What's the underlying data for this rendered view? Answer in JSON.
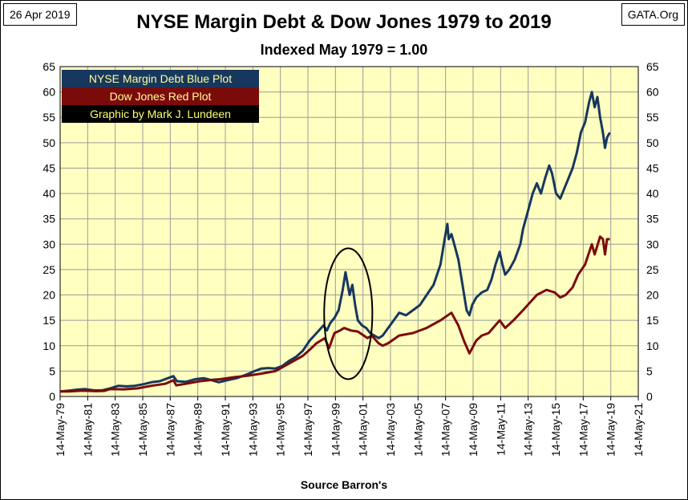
{
  "header": {
    "date": "26 Apr 2019",
    "source": "GATA.Org",
    "title": "NYSE Margin Debt & Dow Jones 1979 to 2019",
    "subtitle": "Indexed May 1979 = 1.00"
  },
  "legend": [
    {
      "label": "NYSE Margin Debt Blue Plot",
      "bg": "#17375e",
      "fg": "#ffff99"
    },
    {
      "label": "Dow Jones Red Plot",
      "bg": "#7b0b0b",
      "fg": "#ffff99"
    },
    {
      "label": "Graphic by Mark J. Lundeen",
      "bg": "#000000",
      "fg": "#ffff66"
    }
  ],
  "colors": {
    "plot_bg": "#ffffc0",
    "grid": "#9c9c9c",
    "margin_line": "#17375e",
    "dow_line": "#7b0b0b"
  },
  "chart_data": {
    "type": "line",
    "title": "NYSE Margin Debt & Dow Jones 1979 to 2019",
    "subtitle": "Indexed May 1979 = 1.00",
    "xlabel": "Source Barron's",
    "ylabel": "",
    "xlim": [
      1979.37,
      2021.37
    ],
    "ylim": [
      0,
      65
    ],
    "y_ticks": [
      0,
      5,
      10,
      15,
      20,
      25,
      30,
      35,
      40,
      45,
      50,
      55,
      60,
      65
    ],
    "x_tick_labels": [
      "14-May-79",
      "14-May-81",
      "14-May-83",
      "14-May-85",
      "14-May-87",
      "14-May-89",
      "14-May-91",
      "14-May-93",
      "14-May-95",
      "14-May-97",
      "14-May-99",
      "14-May-01",
      "14-May-03",
      "14-May-05",
      "14-May-07",
      "14-May-09",
      "14-May-11",
      "14-May-13",
      "14-May-15",
      "14-May-17",
      "14-May-19",
      "14-May-21"
    ],
    "grid": true,
    "legend_position": "top-left",
    "annotation": "ellipse around 1999-2001 margin debt peak",
    "ellipse": {
      "center_x": 2000.3,
      "center_y": 16.3,
      "radius_x": 1.75,
      "radius_y": 12.9
    },
    "series": [
      {
        "name": "NYSE Margin Debt",
        "x": [
          1979.37,
          1980.0,
          1980.6,
          1981.2,
          1981.8,
          1982.4,
          1983.0,
          1983.6,
          1984.2,
          1984.8,
          1985.4,
          1986.0,
          1986.6,
          1987.2,
          1987.6,
          1987.85,
          1988.5,
          1989.2,
          1989.8,
          1990.4,
          1990.9,
          1991.5,
          1992.2,
          1992.9,
          1993.5,
          1994.0,
          1994.5,
          1995.0,
          1995.5,
          1996.0,
          1996.5,
          1997.0,
          1997.5,
          1998.0,
          1998.5,
          1998.75,
          1999.0,
          1999.3,
          1999.6,
          1999.9,
          2000.1,
          2000.2,
          2000.4,
          2000.6,
          2000.8,
          2001.0,
          2001.3,
          2001.6,
          2001.9,
          2002.2,
          2002.5,
          2002.8,
          2003.2,
          2003.6,
          2004.0,
          2004.5,
          2005.0,
          2005.5,
          2006.0,
          2006.5,
          2007.0,
          2007.3,
          2007.5,
          2007.6,
          2007.8,
          2008.0,
          2008.3,
          2008.6,
          2008.9,
          2009.1,
          2009.3,
          2009.6,
          2010.0,
          2010.4,
          2010.7,
          2011.0,
          2011.3,
          2011.5,
          2011.7,
          2012.0,
          2012.4,
          2012.8,
          2013.0,
          2013.3,
          2013.7,
          2014.0,
          2014.3,
          2014.6,
          2014.9,
          2015.1,
          2015.4,
          2015.7,
          2016.0,
          2016.3,
          2016.6,
          2016.9,
          2017.2,
          2017.5,
          2017.8,
          2018.0,
          2018.2,
          2018.4,
          2018.6,
          2018.8,
          2018.95,
          2019.1,
          2019.3
        ],
        "values": [
          1.0,
          1.15,
          1.35,
          1.45,
          1.2,
          1.2,
          1.6,
          2.1,
          2.0,
          2.1,
          2.4,
          2.8,
          3.0,
          3.6,
          4.0,
          3.0,
          2.9,
          3.4,
          3.6,
          3.2,
          2.8,
          3.2,
          3.6,
          4.3,
          5.0,
          5.5,
          5.6,
          5.5,
          6.0,
          7.0,
          7.8,
          9.0,
          11.0,
          12.5,
          14.0,
          13.0,
          14.5,
          15.5,
          17.0,
          21.0,
          24.5,
          23.0,
          20.0,
          22.0,
          18.0,
          15.0,
          14.0,
          13.5,
          12.5,
          12.0,
          11.5,
          12.0,
          13.5,
          15.0,
          16.5,
          16.0,
          17.0,
          18.0,
          20.0,
          22.0,
          26.0,
          31.0,
          34.0,
          31.0,
          32.0,
          30.0,
          27.0,
          22.0,
          17.0,
          16.0,
          18.0,
          19.5,
          20.5,
          21.0,
          23.0,
          26.0,
          28.5,
          26.0,
          24.0,
          25.0,
          27.0,
          30.0,
          33.0,
          36.0,
          40.0,
          42.0,
          40.0,
          43.0,
          45.5,
          44.0,
          40.0,
          39.0,
          41.0,
          43.0,
          45.0,
          48.0,
          52.0,
          54.0,
          58.0,
          60.0,
          57.0,
          59.0,
          55.0,
          52.0,
          49.0,
          51.0,
          52.0
        ]
      },
      {
        "name": "Dow Jones",
        "x": [
          1979.37,
          1980.0,
          1981.0,
          1982.0,
          1982.6,
          1983.0,
          1984.0,
          1985.0,
          1986.0,
          1987.0,
          1987.6,
          1987.8,
          1988.5,
          1989.5,
          1990.5,
          1991.0,
          1992.0,
          1993.0,
          1994.0,
          1995.0,
          1996.0,
          1997.0,
          1997.5,
          1998.0,
          1998.6,
          1998.9,
          1999.3,
          1999.7,
          2000.0,
          2000.5,
          2001.0,
          2001.7,
          2002.0,
          2002.5,
          2002.8,
          2003.2,
          2004.0,
          2005.0,
          2006.0,
          2007.0,
          2007.8,
          2008.3,
          2008.7,
          2009.1,
          2009.6,
          2010.0,
          2010.5,
          2011.3,
          2011.7,
          2012.3,
          2013.0,
          2014.0,
          2014.7,
          2015.3,
          2015.7,
          2016.1,
          2016.6,
          2017.0,
          2017.5,
          2018.0,
          2018.2,
          2018.6,
          2018.8,
          2018.95,
          2019.1,
          2019.3
        ],
        "values": [
          1.0,
          1.0,
          1.15,
          1.05,
          1.1,
          1.45,
          1.4,
          1.6,
          2.1,
          2.5,
          3.2,
          2.2,
          2.5,
          3.0,
          3.3,
          3.4,
          3.8,
          4.1,
          4.5,
          5.0,
          6.5,
          8.0,
          9.2,
          10.5,
          11.5,
          9.5,
          12.5,
          13.0,
          13.5,
          13.0,
          12.8,
          11.5,
          12.0,
          10.5,
          10.0,
          10.5,
          12.0,
          12.5,
          13.5,
          15.0,
          16.5,
          14.0,
          11.0,
          8.5,
          11.0,
          12.0,
          12.5,
          15.0,
          13.5,
          15.0,
          17.0,
          20.0,
          21.0,
          20.5,
          19.5,
          20.0,
          21.5,
          24.0,
          26.0,
          30.0,
          28.0,
          31.5,
          31.0,
          28.0,
          31.0,
          31.0
        ]
      }
    ]
  }
}
